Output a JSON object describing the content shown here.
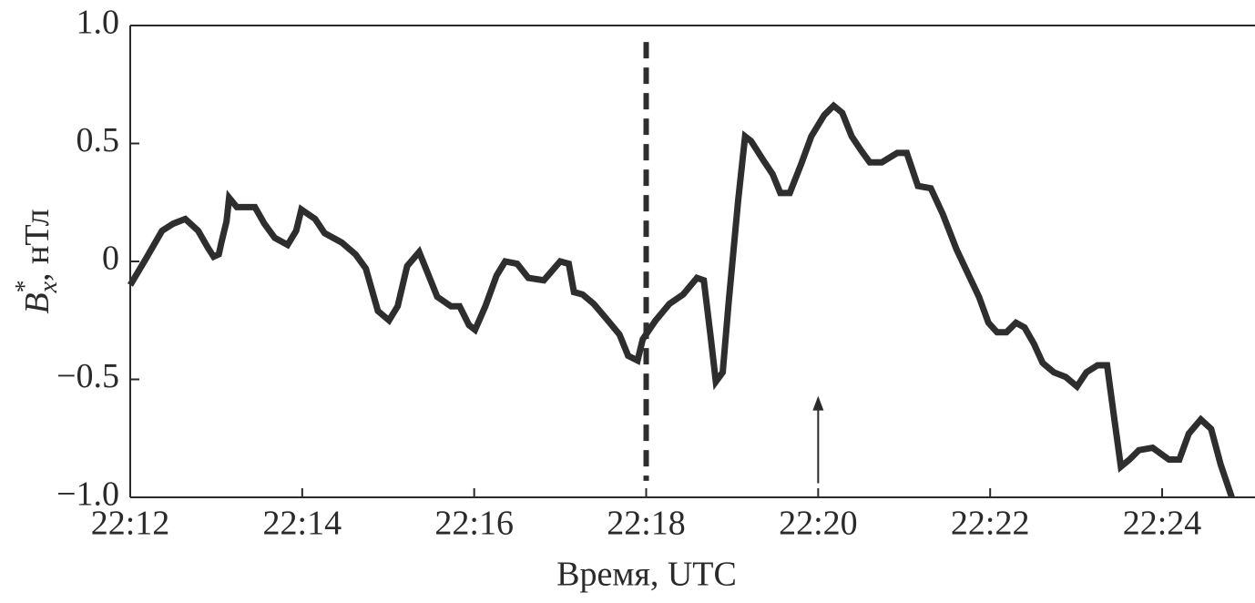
{
  "chart_data": {
    "type": "line",
    "x_label": "Время, UTC",
    "y_label": {
      "main": "B",
      "sup": "*",
      "sub": "x",
      "rest": ", нТл"
    },
    "xlim": [
      1332,
      1345.08
    ],
    "ylim": [
      -1,
      1
    ],
    "xticks": [
      {
        "value": 1332,
        "label": "22:12"
      },
      {
        "value": 1334,
        "label": "22:14"
      },
      {
        "value": 1336,
        "label": "22:16"
      },
      {
        "value": 1338,
        "label": "22:18"
      },
      {
        "value": 1340,
        "label": "22:20"
      },
      {
        "value": 1342,
        "label": "22:22"
      },
      {
        "value": 1344,
        "label": "22:24"
      }
    ],
    "yticks": [
      {
        "value": 1,
        "label": "1.0"
      },
      0.5,
      0,
      {
        "value": -0.5,
        "label": "−0.5"
      },
      {
        "value": -1,
        "label": "−1.0"
      }
    ],
    "color": "#2e2e2e",
    "vline": {
      "x": 1338,
      "y": [
        0.93,
        -0.93
      ],
      "style": "dashed"
    },
    "arrow": {
      "x": 1340,
      "y": [
        -0.94,
        -0.57
      ]
    },
    "x": [
      1332,
      1332.18,
      1332.37,
      1332.5,
      1332.64,
      1332.79,
      1332.9,
      1332.97,
      1333.03,
      1333.06,
      1333.12,
      1333.15,
      1333.24,
      1333.35,
      1333.45,
      1333.56,
      1333.68,
      1333.83,
      1333.93,
      1333.99,
      1334.07,
      1334.15,
      1334.26,
      1334.46,
      1334.62,
      1334.74,
      1334.88,
      1335.01,
      1335.11,
      1335.22,
      1335.36,
      1335.46,
      1335.57,
      1335.73,
      1335.83,
      1335.94,
      1336.01,
      1336.13,
      1336.26,
      1336.36,
      1336.5,
      1336.63,
      1336.81,
      1337,
      1337.1,
      1337.16,
      1337.26,
      1337.39,
      1337.53,
      1337.69,
      1337.79,
      1337.9,
      1337.96,
      1338.11,
      1338.27,
      1338.43,
      1338.59,
      1338.67,
      1338.75,
      1338.81,
      1338.89,
      1338.96,
      1339.07,
      1339.15,
      1339.22,
      1339.36,
      1339.47,
      1339.56,
      1339.67,
      1339.81,
      1339.92,
      1340.07,
      1340.18,
      1340.28,
      1340.39,
      1340.5,
      1340.6,
      1340.74,
      1340.92,
      1341.03,
      1341.16,
      1341.31,
      1341.45,
      1341.61,
      1341.74,
      1341.87,
      1341.98,
      1342.08,
      1342.19,
      1342.3,
      1342.4,
      1342.51,
      1342.61,
      1342.74,
      1342.88,
      1343.01,
      1343.12,
      1343.25,
      1343.36,
      1343.43,
      1343.52,
      1343.62,
      1343.73,
      1343.89,
      1344.08,
      1344.2,
      1344.31,
      1344.45,
      1344.57,
      1344.68,
      1344.81
    ],
    "values": [
      -0.1,
      0.01,
      0.13,
      0.16,
      0.18,
      0.13,
      0.06,
      0.02,
      0.03,
      0.08,
      0.17,
      0.27,
      0.23,
      0.23,
      0.23,
      0.16,
      0.1,
      0.07,
      0.13,
      0.22,
      0.2,
      0.18,
      0.12,
      0.08,
      0.03,
      -0.03,
      -0.21,
      -0.25,
      -0.19,
      -0.02,
      0.04,
      -0.05,
      -0.15,
      -0.19,
      -0.19,
      -0.27,
      -0.29,
      -0.19,
      -0.06,
      0,
      -0.01,
      -0.07,
      -0.08,
      0,
      -0.01,
      -0.13,
      -0.14,
      -0.18,
      -0.24,
      -0.31,
      -0.4,
      -0.42,
      -0.33,
      -0.25,
      -0.18,
      -0.14,
      -0.07,
      -0.08,
      -0.32,
      -0.51,
      -0.47,
      -0.17,
      0.26,
      0.53,
      0.51,
      0.43,
      0.37,
      0.29,
      0.29,
      0.42,
      0.53,
      0.62,
      0.66,
      0.63,
      0.53,
      0.47,
      0.42,
      0.42,
      0.46,
      0.46,
      0.32,
      0.31,
      0.2,
      0.05,
      -0.05,
      -0.15,
      -0.26,
      -0.3,
      -0.3,
      -0.26,
      -0.28,
      -0.35,
      -0.43,
      -0.47,
      -0.49,
      -0.53,
      -0.47,
      -0.44,
      -0.44,
      -0.63,
      -0.87,
      -0.84,
      -0.8,
      -0.79,
      -0.84,
      -0.84,
      -0.73,
      -0.67,
      -0.71,
      -0.86,
      -1
    ]
  }
}
